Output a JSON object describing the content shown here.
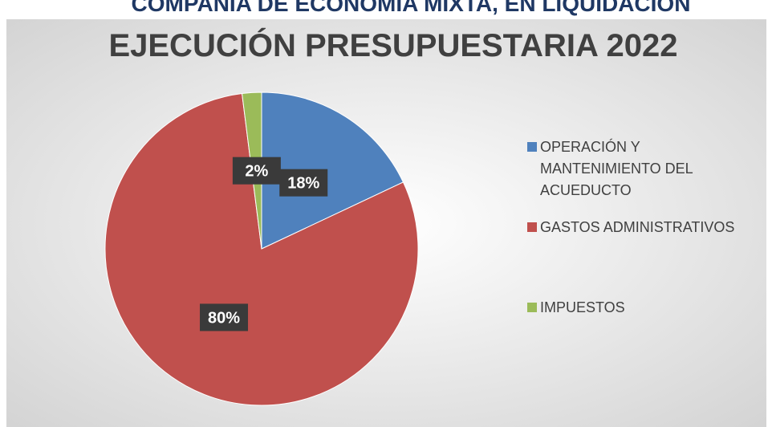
{
  "chart_data": {
    "type": "pie",
    "header": "COMPAÑÍA DE ECONOMÍA MIXTA, EN LIQUIDACIÓN",
    "title": "EJECUCIÓN PRESUPUESTARIA 2022",
    "categories": [
      "OPERACIÓN Y MANTENIMIENTO DEL ACUEDUCTO",
      "GASTOS ADMINISTRATIVOS",
      "IMPUESTOS"
    ],
    "values": [
      18,
      80,
      2
    ],
    "value_labels": [
      "18%",
      "80%",
      "2%"
    ],
    "colors": [
      "#4f81bd",
      "#c0504d",
      "#9bbb59"
    ],
    "legend": "right"
  }
}
